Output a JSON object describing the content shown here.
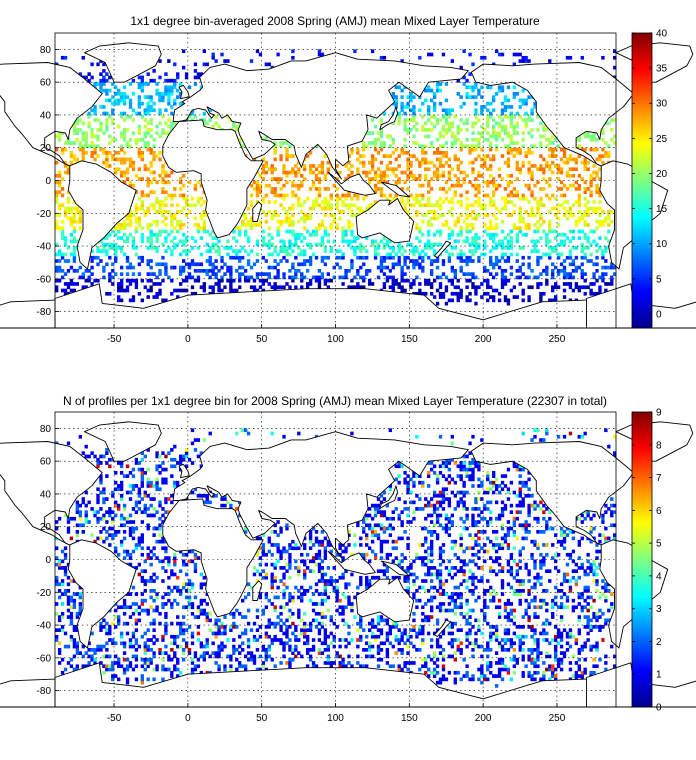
{
  "chart_data": [
    {
      "type": "heatmap",
      "title": "1x1 degree bin-averaged 2008 Spring (AMJ) mean Mixed Layer Temperature",
      "x_ticks": [
        -50,
        0,
        50,
        100,
        150,
        200,
        250
      ],
      "y_ticks": [
        80,
        60,
        40,
        20,
        0,
        -20,
        -40,
        -60,
        -80
      ],
      "xlim": [
        -90,
        290
      ],
      "ylim": [
        -90,
        90
      ],
      "grid": true,
      "colorbar": {
        "min": -2,
        "max": 40,
        "ticks": [
          0,
          5,
          10,
          15,
          20,
          25,
          30,
          35,
          40
        ],
        "colormap": "jet"
      },
      "latitude_bands": [
        {
          "lat": [
            60,
            90
          ],
          "value": 3
        },
        {
          "lat": [
            40,
            60
          ],
          "value": 11
        },
        {
          "lat": [
            20,
            40
          ],
          "value": 20
        },
        {
          "lat": [
            -10,
            20
          ],
          "value": 28
        },
        {
          "lat": [
            -30,
            -10
          ],
          "value": 24
        },
        {
          "lat": [
            -45,
            -30
          ],
          "value": 15
        },
        {
          "lat": [
            -60,
            -45
          ],
          "value": 6
        },
        {
          "lat": [
            -80,
            -60
          ],
          "value": 1
        }
      ]
    },
    {
      "type": "heatmap",
      "title": "N of profiles per 1x1 degree bin for 2008 Spring (AMJ) mean Mixed Layer Temperature  (22307 in total)",
      "x_ticks": [
        -50,
        0,
        50,
        100,
        150,
        200,
        250
      ],
      "y_ticks": [
        80,
        60,
        40,
        20,
        0,
        -20,
        -40,
        -60,
        -80
      ],
      "xlim": [
        -90,
        290
      ],
      "ylim": [
        -90,
        90
      ],
      "grid": true,
      "total_profiles": 22307,
      "colorbar": {
        "min": 0,
        "max": 9,
        "ticks": [
          0,
          1,
          2,
          3,
          4,
          5,
          6,
          7,
          8,
          9
        ],
        "colormap": "jet"
      }
    }
  ]
}
